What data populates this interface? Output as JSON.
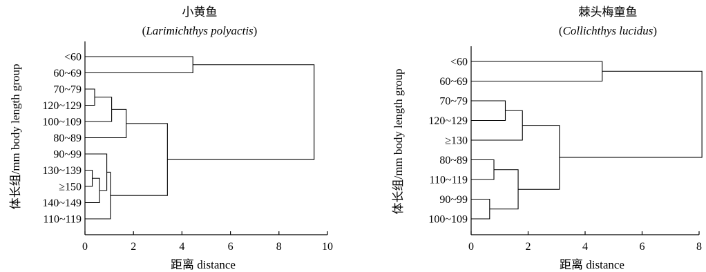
{
  "ylabel": "体长组/mm body length group",
  "chart_data": [
    {
      "type": "dendrogram",
      "title": "小黄鱼",
      "subtitle_prefix": "(",
      "subtitle_italic": "Larimichthys polyactis",
      "subtitle_suffix": ")",
      "xlabel": "距离 distance",
      "xlim": [
        0,
        10
      ],
      "xticks": [
        0,
        2,
        4,
        6,
        8,
        10
      ],
      "leaves": [
        "<60",
        "60~69",
        "70~79",
        "120~129",
        "100~109",
        "80~89",
        "90~99",
        "130~139",
        "≥150",
        "140~149",
        "110~119"
      ],
      "merges": [
        {
          "a": "L2",
          "b": "L3",
          "h": 0.4
        },
        {
          "a": "L7",
          "b": "L8",
          "h": 0.3
        },
        {
          "a": "M1",
          "b": "L9",
          "h": 0.6
        },
        {
          "a": "M2",
          "b": "L6",
          "h": 0.9
        },
        {
          "a": "M0",
          "b": "L4",
          "h": 1.1
        },
        {
          "a": "M3",
          "b": "L10",
          "h": 1.05
        },
        {
          "a": "M4",
          "b": "L5",
          "h": 1.7
        },
        {
          "a": "M6",
          "b": "M5",
          "h": 3.4
        },
        {
          "a": "L0",
          "b": "L1",
          "h": 4.45
        },
        {
          "a": "M8",
          "b": "M7",
          "h": 9.45
        }
      ]
    },
    {
      "type": "dendrogram",
      "title": "棘头梅童鱼",
      "subtitle_prefix": "(",
      "subtitle_italic": "Collichthys lucidus",
      "subtitle_suffix": ")",
      "xlabel": "距离 distance",
      "xlim": [
        0,
        8
      ],
      "xticks": [
        0,
        2,
        4,
        6,
        8
      ],
      "leaves": [
        "<60",
        "60~69",
        "70~79",
        "120~129",
        "≥130",
        "80~89",
        "110~119",
        "90~99",
        "100~109"
      ],
      "merges": [
        {
          "a": "L2",
          "b": "L3",
          "h": 1.2
        },
        {
          "a": "L7",
          "b": "L8",
          "h": 0.65
        },
        {
          "a": "L5",
          "b": "L6",
          "h": 0.8
        },
        {
          "a": "M0",
          "b": "L4",
          "h": 1.8
        },
        {
          "a": "M2",
          "b": "M1",
          "h": 1.65
        },
        {
          "a": "M3",
          "b": "M4",
          "h": 3.1
        },
        {
          "a": "L0",
          "b": "L1",
          "h": 4.6
        },
        {
          "a": "M6",
          "b": "M5",
          "h": 8.1
        }
      ]
    }
  ]
}
